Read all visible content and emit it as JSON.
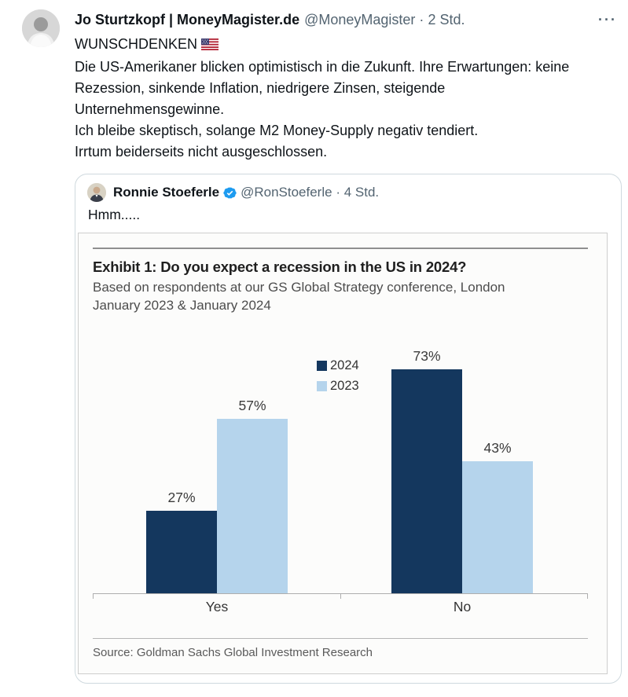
{
  "tweet": {
    "author_name": "Jo Sturtzkopf | MoneyMagister.de",
    "author_handle": "@MoneyMagister",
    "timestamp_sep": "·",
    "timestamp": "2 Std.",
    "more_label": "···",
    "first_line": "WUNSCHDENKEN",
    "body_lines": [
      "Die US-Amerikaner blicken optimistisch in die Zukunft. Ihre Erwartungen: keine Rezession, sinkende Inflation, niedrigere Zinsen, steigende Unternehmensgewinne.",
      "Ich bleibe skeptisch, solange M2 Money-Supply negativ tendiert.",
      "Irrtum beiderseits nicht ausgeschlossen."
    ]
  },
  "quoted_tweet": {
    "author_name": "Ronnie Stoeferle",
    "verified": true,
    "author_handle": "@RonStoeferle",
    "timestamp_sep": "·",
    "timestamp": "4 Std.",
    "text": "Hmm....."
  },
  "chart_data": {
    "type": "bar",
    "title": "Exhibit 1: Do you expect a recession in the US in 2024?",
    "subtitle": "Based on respondents at our GS Global Strategy conference, London January 2023 & January 2024",
    "categories": [
      "Yes",
      "No"
    ],
    "series": [
      {
        "name": "2024",
        "values": [
          27,
          73
        ],
        "color": "#14375e"
      },
      {
        "name": "2023",
        "values": [
          57,
          43
        ],
        "color": "#b5d4ec"
      }
    ],
    "value_suffix": "%",
    "ylim": [
      0,
      100
    ],
    "grid": false,
    "legend_position": "center-top",
    "source": "Source: Goldman Sachs Global Investment Research"
  },
  "icons": {
    "more": "more-options-icon",
    "flag": "us-flag-emoji",
    "verified": "verified-badge-icon"
  },
  "colors": {
    "text_primary": "#0f1419",
    "text_secondary": "#536471",
    "card_border": "#cfd9de",
    "verified_blue": "#1d9bf0",
    "bar_2024": "#14375e",
    "bar_2023": "#b5d4ec"
  }
}
